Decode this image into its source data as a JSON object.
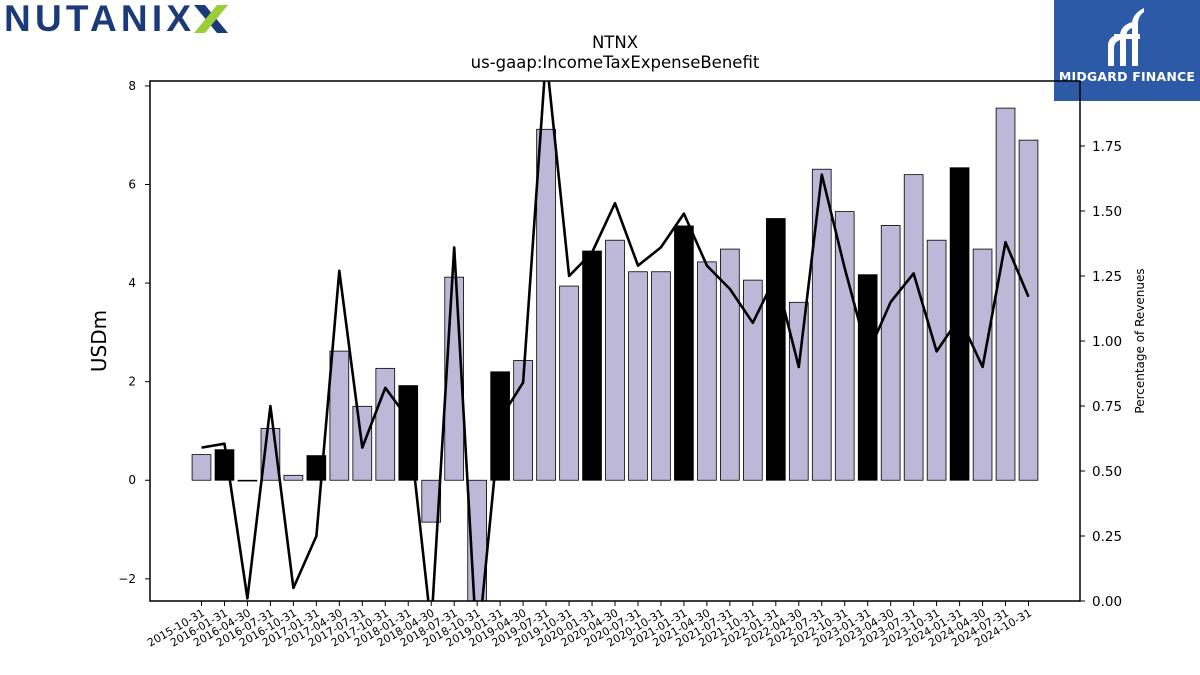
{
  "brand": {
    "logo_text": "NUTANIX",
    "logo_colors": {
      "text": "#1a3a7a",
      "x_mark": "#9bcc3a"
    },
    "sponsor_name": "MIDGARD FINANCE",
    "sponsor_color": "#2d5aa7"
  },
  "chart_data": {
    "type": "bar",
    "title": "NTNX",
    "subtitle": "us-gaap:IncomeTaxExpenseBenefit",
    "ylabel": "USDm",
    "y2label": "Percentage of Revenues",
    "ylim": [
      -2.45,
      8.1
    ],
    "y2lim": [
      0.0,
      2.0
    ],
    "yticks": [
      -2,
      0,
      2,
      4,
      6,
      8
    ],
    "y2ticks": [
      0.0,
      0.25,
      0.5,
      0.75,
      1.0,
      1.25,
      1.5,
      1.75
    ],
    "ytick_labels": [
      "−2",
      "0",
      "2",
      "4",
      "6",
      "8"
    ],
    "y2tick_labels": [
      "0.00",
      "0.25",
      "0.50",
      "0.75",
      "1.00",
      "1.25",
      "1.50",
      "1.75"
    ],
    "colors": {
      "bar_default": "#bdb8d8",
      "bar_highlight": "#000000",
      "line": "#000000"
    },
    "categories": [
      "2015-10-31",
      "2016-01-31",
      "2016-04-30",
      "2016-07-31",
      "2016-10-31",
      "2017-01-31",
      "2017-04-30",
      "2017-07-31",
      "2017-10-31",
      "2018-01-31",
      "2018-04-30",
      "2018-07-31",
      "2018-10-31",
      "2019-01-31",
      "2019-04-30",
      "2019-07-31",
      "2019-10-31",
      "2020-01-31",
      "2020-04-30",
      "2020-07-31",
      "2020-10-31",
      "2021-01-31",
      "2021-04-30",
      "2021-07-31",
      "2021-10-31",
      "2022-01-31",
      "2022-04-30",
      "2022-07-31",
      "2022-10-31",
      "2023-01-31",
      "2023-04-30",
      "2023-07-31",
      "2023-10-31",
      "2024-01-31",
      "2024-04-30",
      "2024-07-31",
      "2024-10-31"
    ],
    "series": [
      {
        "kind": "bar",
        "axis": "left",
        "values": [
          0.52,
          0.62,
          0.0,
          1.05,
          0.1,
          0.5,
          2.62,
          1.5,
          2.27,
          1.92,
          -0.85,
          4.12,
          -2.6,
          2.2,
          2.43,
          7.12,
          3.94,
          4.65,
          4.87,
          4.23,
          4.23,
          5.16,
          4.43,
          4.69,
          4.06,
          5.31,
          3.61,
          6.31,
          5.45,
          4.17,
          5.17,
          6.2,
          4.87,
          6.34,
          4.69,
          7.55,
          6.9
        ],
        "highlight": [
          false,
          true,
          false,
          false,
          false,
          true,
          false,
          false,
          false,
          true,
          false,
          false,
          false,
          true,
          false,
          false,
          false,
          true,
          false,
          false,
          false,
          true,
          false,
          false,
          false,
          true,
          false,
          false,
          false,
          true,
          false,
          false,
          false,
          true,
          false,
          false,
          false
        ]
      },
      {
        "kind": "line",
        "axis": "right",
        "values": [
          0.59,
          0.605,
          0.01,
          0.75,
          0.05,
          0.25,
          1.27,
          0.59,
          0.82,
          0.7,
          -0.1,
          1.36,
          -0.2,
          0.7,
          0.84,
          2.1,
          1.25,
          1.34,
          1.53,
          1.29,
          1.36,
          1.49,
          1.29,
          1.2,
          1.07,
          1.25,
          0.9,
          1.64,
          1.28,
          0.95,
          1.15,
          1.26,
          0.96,
          1.09,
          0.9,
          1.38,
          1.17
        ]
      }
    ]
  }
}
